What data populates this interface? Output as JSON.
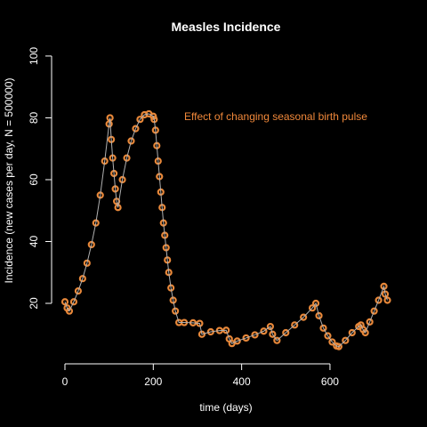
{
  "chart_data": {
    "type": "line",
    "title": "Measles Incidence",
    "xlabel": "time (days)",
    "ylabel": "Incidence (new cases per day, N = 500000)",
    "annotation": "Effect of changing seasonal birth pulse",
    "annotation_color": "#f0883a",
    "xlim": [
      -29.2,
      759.2
    ],
    "ylim": [
      4,
      102
    ],
    "xticks": [
      0,
      200,
      400,
      600
    ],
    "yticks": [
      20,
      40,
      60,
      80,
      100
    ],
    "series": [
      {
        "line_color": "#b0b0b0",
        "color": "#e8883a",
        "x": [
          0,
          5,
          10,
          20,
          30,
          40,
          50,
          60,
          70,
          80,
          90,
          100,
          102,
          105,
          108,
          111,
          114,
          117,
          120,
          130,
          140,
          150,
          160,
          170,
          180,
          190,
          200,
          202,
          205,
          208,
          211,
          214,
          217,
          220,
          223,
          226,
          229,
          232,
          235,
          240,
          245,
          250,
          258,
          270,
          290,
          305,
          310,
          330,
          350,
          365,
          372,
          378,
          390,
          410,
          430,
          450,
          465,
          470,
          480,
          500,
          520,
          540,
          560,
          568,
          575,
          585,
          595,
          605,
          615,
          620,
          635,
          650,
          665,
          670,
          675,
          680,
          690,
          700,
          710,
          722,
          725,
          730
        ],
        "values": [
          20.5,
          18.5,
          17.5,
          20.5,
          24,
          28,
          33,
          39,
          46,
          55,
          66,
          78,
          80,
          73,
          67,
          62,
          57,
          53,
          51,
          60,
          67,
          72.5,
          76.5,
          79.5,
          81,
          81.3,
          80.5,
          79.5,
          76,
          71,
          66,
          61,
          56,
          51,
          46,
          42,
          38,
          34,
          30,
          25,
          21,
          17.5,
          13.8,
          13.8,
          13.7,
          13.5,
          10,
          10.8,
          11.2,
          11.3,
          8.5,
          7,
          7.8,
          8.8,
          9.8,
          11,
          12.5,
          10,
          8,
          10.5,
          13,
          15.5,
          18.5,
          20,
          16,
          12,
          9.5,
          7.5,
          6.2,
          6,
          8,
          10.5,
          12.5,
          13,
          11.5,
          10.5,
          14,
          17.5,
          21,
          25.5,
          23,
          21
        ]
      }
    ]
  }
}
